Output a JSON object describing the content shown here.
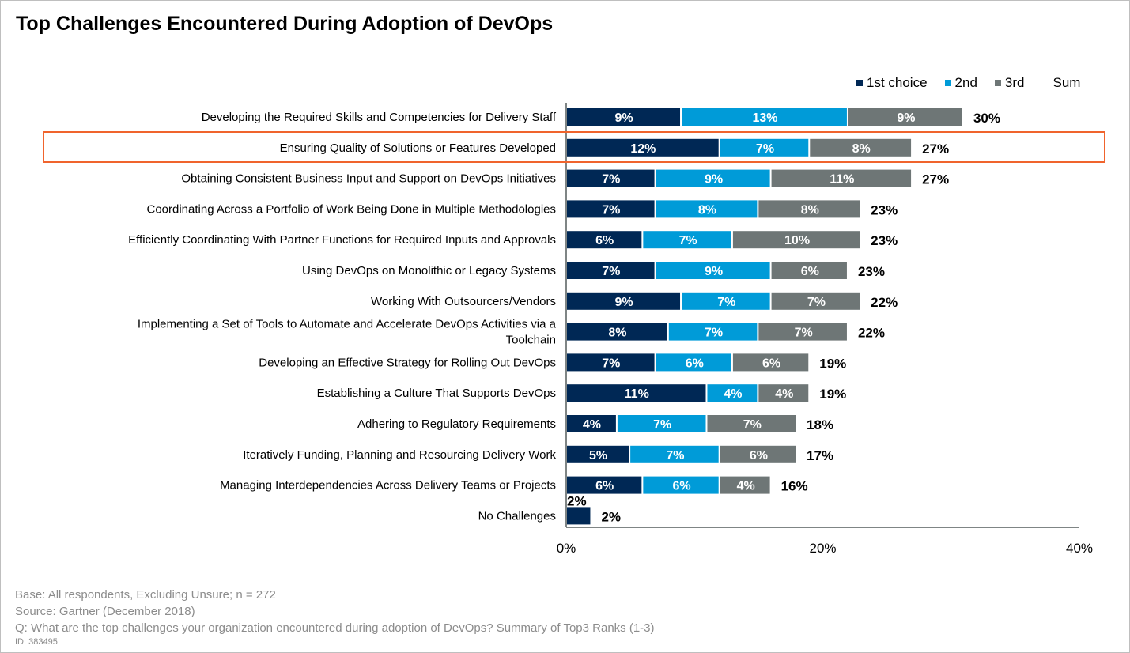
{
  "chart_data": {
    "type": "bar",
    "orientation": "horizontal",
    "stacked": true,
    "title": "Top Challenges Encountered During Adoption of DevOps",
    "categories": [
      "Developing the Required Skills and Competencies for Delivery Staff",
      "Ensuring Quality of Solutions or Features Developed",
      "Obtaining Consistent Business Input and Support on DevOps Initiatives",
      "Coordinating Across a Portfolio of Work Being Done in Multiple Methodologies",
      "Efficiently Coordinating With Partner Functions for Required Inputs and Approvals",
      "Using DevOps on Monolithic or Legacy Systems",
      "Working With Outsourcers/Vendors",
      "Implementing a Set of Tools to Automate and Accelerate DevOps Activities via a Toolchain",
      "Developing an Effective Strategy for Rolling Out DevOps",
      "Establishing a Culture That Supports DevOps",
      "Adhering to Regulatory Requirements",
      "Iteratively Funding, Planning and Resourcing Delivery Work",
      "Managing Interdependencies Across Delivery Teams or Projects",
      "No Challenges"
    ],
    "category_lines": [
      [
        "Developing the Required Skills and Competencies for Delivery Staff"
      ],
      [
        "Ensuring Quality of Solutions or Features Developed"
      ],
      [
        "Obtaining Consistent Business Input and Support on DevOps Initiatives"
      ],
      [
        "Coordinating Across a Portfolio of Work Being Done in Multiple Methodologies"
      ],
      [
        "Efficiently Coordinating With Partner Functions for Required Inputs and Approvals"
      ],
      [
        "Using DevOps on Monolithic or Legacy Systems"
      ],
      [
        "Working With Outsourcers/Vendors"
      ],
      [
        "Implementing a Set of Tools to Automate and Accelerate DevOps Activities via a",
        "Toolchain"
      ],
      [
        "Developing an Effective Strategy for Rolling Out DevOps"
      ],
      [
        "Establishing a Culture That Supports DevOps"
      ],
      [
        "Adhering to Regulatory Requirements"
      ],
      [
        "Iteratively Funding, Planning and Resourcing Delivery Work"
      ],
      [
        "Managing Interdependencies Across Delivery Teams or Projects"
      ],
      [
        "No Challenges"
      ]
    ],
    "series": [
      {
        "name": "1st choice",
        "color": "#002855",
        "values": [
          9,
          12,
          7,
          7,
          6,
          7,
          9,
          8,
          7,
          11,
          4,
          5,
          6,
          2
        ]
      },
      {
        "name": "2nd",
        "color": "#009bd8",
        "values": [
          13,
          7,
          9,
          8,
          7,
          9,
          7,
          7,
          6,
          4,
          7,
          7,
          6,
          0
        ]
      },
      {
        "name": "3rd",
        "color": "#6e7676",
        "values": [
          9,
          8,
          11,
          8,
          10,
          6,
          7,
          7,
          6,
          4,
          7,
          6,
          4,
          0
        ]
      }
    ],
    "sum_name": "Sum",
    "sums": [
      30,
      27,
      27,
      23,
      23,
      23,
      22,
      22,
      19,
      19,
      18,
      17,
      16,
      2
    ],
    "no_challenges_segment_label": "2%",
    "xlim": [
      0,
      40
    ],
    "xticks": [
      "0%",
      "20%",
      "40%"
    ],
    "xtick_values": [
      0,
      20,
      40
    ],
    "highlighted_category": "Ensuring Quality of Solutions or Features Developed",
    "highlight_color": "#f0642d",
    "legend_position": "top-right",
    "grid": false
  },
  "footer": {
    "base": "Base: All respondents, Excluding Unsure; n = 272",
    "source": "Source: Gartner (December 2018)",
    "question": "Q: What are the top challenges your organization encountered during adoption of DevOps? Summary of Top3 Ranks (1-3)",
    "id": "ID: 383495"
  }
}
